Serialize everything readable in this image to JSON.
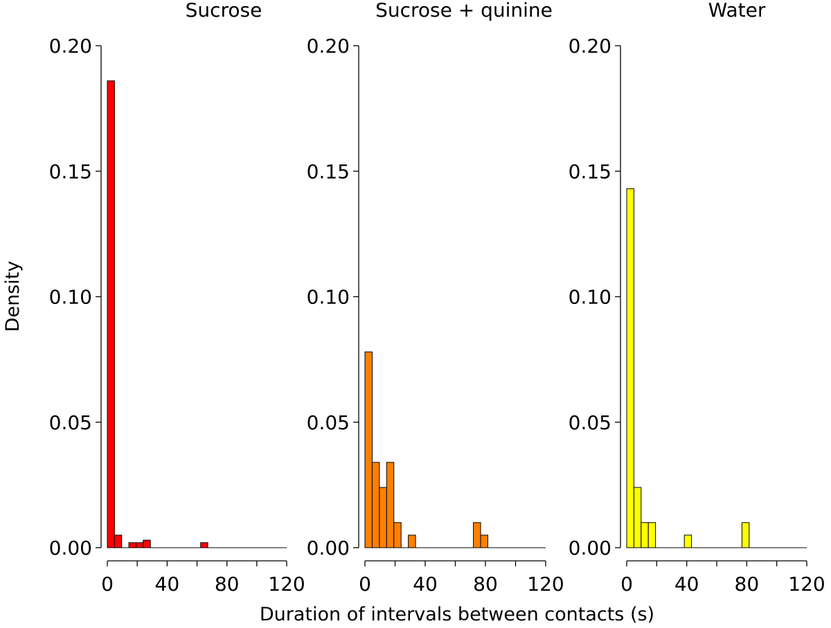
{
  "figure": {
    "ylabel": "Density",
    "xlabel": "Duration of intervals between contacts (s)"
  },
  "chart_data": [
    {
      "type": "bar",
      "title": "Sucrose",
      "color": "#ff0000",
      "bin_width": 4.8,
      "xlim": [
        0,
        120
      ],
      "ylim": [
        0,
        0.2
      ],
      "x_ticks": [
        0,
        40,
        80,
        120
      ],
      "x_tick_labels": [
        "0",
        "40",
        "80",
        "120"
      ],
      "y_ticks": [
        0,
        0.05,
        0.1,
        0.15,
        0.2
      ],
      "y_tick_labels": [
        "0.00",
        "0.05",
        "0.10",
        "0.15",
        "0.20"
      ],
      "bars": [
        {
          "x0": 0,
          "value": 0.186
        },
        {
          "x0": 4.8,
          "value": 0.005
        },
        {
          "x0": 14.4,
          "value": 0.002
        },
        {
          "x0": 19.2,
          "value": 0.002
        },
        {
          "x0": 24.0,
          "value": 0.003
        },
        {
          "x0": 62.4,
          "value": 0.002
        }
      ]
    },
    {
      "type": "bar",
      "title": "Sucrose + quinine",
      "color": "#ff8000",
      "bin_width": 4.8,
      "xlim": [
        0,
        120
      ],
      "ylim": [
        0,
        0.2
      ],
      "x_ticks": [
        0,
        40,
        80,
        120
      ],
      "x_tick_labels": [
        "0",
        "40",
        "80",
        "120"
      ],
      "y_ticks": [
        0,
        0.05,
        0.1,
        0.15,
        0.2
      ],
      "y_tick_labels": [
        "0.00",
        "0.05",
        "0.10",
        "0.15",
        "0.20"
      ],
      "bars": [
        {
          "x0": 0,
          "value": 0.078
        },
        {
          "x0": 4.8,
          "value": 0.034
        },
        {
          "x0": 9.6,
          "value": 0.024
        },
        {
          "x0": 14.4,
          "value": 0.034
        },
        {
          "x0": 19.2,
          "value": 0.01
        },
        {
          "x0": 28.8,
          "value": 0.005
        },
        {
          "x0": 72.0,
          "value": 0.01
        },
        {
          "x0": 76.8,
          "value": 0.005
        }
      ]
    },
    {
      "type": "bar",
      "title": "Water",
      "color": "#ffff00",
      "bin_width": 4.8,
      "xlim": [
        0,
        120
      ],
      "ylim": [
        0,
        0.2
      ],
      "x_ticks": [
        0,
        40,
        80,
        120
      ],
      "x_tick_labels": [
        "0",
        "40",
        "80",
        "120"
      ],
      "y_ticks": [
        0,
        0.05,
        0.1,
        0.15,
        0.2
      ],
      "y_tick_labels": [
        "0.00",
        "0.05",
        "0.10",
        "0.15",
        "0.20"
      ],
      "bars": [
        {
          "x0": 0,
          "value": 0.143
        },
        {
          "x0": 4.8,
          "value": 0.024
        },
        {
          "x0": 9.6,
          "value": 0.01
        },
        {
          "x0": 14.4,
          "value": 0.01
        },
        {
          "x0": 38.4,
          "value": 0.005
        },
        {
          "x0": 76.8,
          "value": 0.01
        }
      ]
    }
  ]
}
